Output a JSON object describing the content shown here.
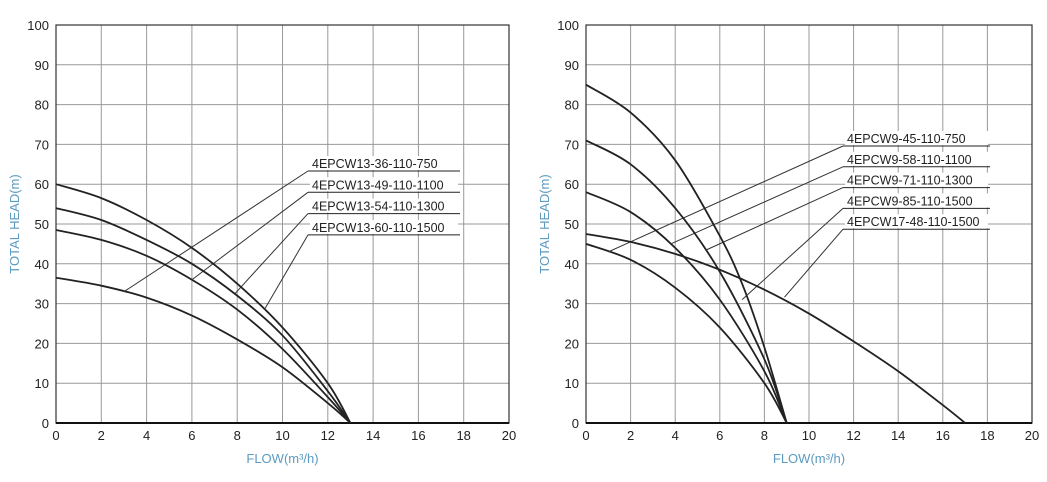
{
  "chart_data": [
    {
      "type": "line",
      "xlabel": "FLOW(m³/h)",
      "ylabel": "TOTAL HEAD(m)",
      "xlim": [
        0,
        20
      ],
      "ylim": [
        0,
        100
      ],
      "xticks": [
        "0",
        "2",
        "4",
        "6",
        "8",
        "10",
        "12",
        "14",
        "16",
        "18",
        "20"
      ],
      "yticks": [
        "0",
        "10",
        "20",
        "30",
        "40",
        "50",
        "60",
        "70",
        "80",
        "90",
        "100"
      ],
      "grid": true,
      "series": [
        {
          "name": "4EPCW13-36-110-750",
          "x": [
            0,
            2,
            4,
            6,
            8,
            10,
            12,
            13
          ],
          "y": [
            36.5,
            34.5,
            31.5,
            27,
            21,
            14,
            5,
            0
          ],
          "leader_to": [
            3,
            33
          ]
        },
        {
          "name": "4EPCW13-49-110-1100",
          "x": [
            0,
            2,
            4,
            6,
            8,
            10,
            12,
            13
          ],
          "y": [
            48.5,
            46,
            42,
            36,
            28.5,
            18.6,
            6.5,
            0
          ],
          "leader_to": [
            6,
            36
          ]
        },
        {
          "name": "4EPCW13-54-110-1300",
          "x": [
            0,
            2,
            4,
            6,
            8,
            10,
            12,
            13
          ],
          "y": [
            54,
            51,
            46,
            40,
            32,
            22,
            8,
            0
          ],
          "leader_to": [
            7.9,
            32.5
          ]
        },
        {
          "name": "4EPCW13-60-110-1500",
          "x": [
            0,
            2,
            4,
            6,
            8,
            10,
            12,
            13
          ],
          "y": [
            60,
            56.5,
            51,
            44,
            35,
            24,
            10,
            0
          ],
          "leader_to": [
            9.2,
            28.5
          ]
        }
      ]
    },
    {
      "type": "line",
      "xlabel": "FLOW(m³/h)",
      "ylabel": "TOTAL HEAD(m)",
      "xlim": [
        0,
        20
      ],
      "ylim": [
        0,
        100
      ],
      "xticks": [
        "0",
        "2",
        "4",
        "6",
        "8",
        "10",
        "12",
        "14",
        "16",
        "18",
        "20"
      ],
      "yticks": [
        "0",
        "10",
        "20",
        "30",
        "40",
        "50",
        "60",
        "70",
        "80",
        "90",
        "100"
      ],
      "grid": true,
      "series": [
        {
          "name": "4EPCW9-45-110-750",
          "x": [
            0,
            2,
            4,
            6,
            8,
            9
          ],
          "y": [
            45,
            41,
            34,
            24,
            10,
            0
          ],
          "leader_to": [
            1,
            43
          ]
        },
        {
          "name": "4EPCW9-58-110-1100",
          "x": [
            0,
            2,
            4,
            6,
            8,
            9
          ],
          "y": [
            58,
            53,
            44,
            31,
            13,
            0
          ],
          "leader_to": [
            3.8,
            45
          ]
        },
        {
          "name": "4EPCW9-71-110-1300",
          "x": [
            0,
            2,
            4,
            6,
            8,
            9
          ],
          "y": [
            71,
            65,
            54,
            38,
            16,
            0
          ],
          "leader_to": [
            5.4,
            43.5
          ]
        },
        {
          "name": "4EPCW9-85-110-1500",
          "x": [
            0,
            2,
            4,
            6,
            7,
            8,
            9
          ],
          "y": [
            85,
            78,
            66,
            47,
            35,
            19,
            0
          ],
          "leader_to": [
            7,
            31
          ]
        },
        {
          "name": "4EPCW17-48-110-1500",
          "x": [
            0,
            2,
            4,
            6,
            8,
            10,
            12,
            14,
            16,
            17
          ],
          "y": [
            47.5,
            45.5,
            42.5,
            38.5,
            33.5,
            27.5,
            20.5,
            13,
            4.5,
            0
          ],
          "leader_to": [
            8.9,
            31.6
          ]
        }
      ]
    }
  ]
}
